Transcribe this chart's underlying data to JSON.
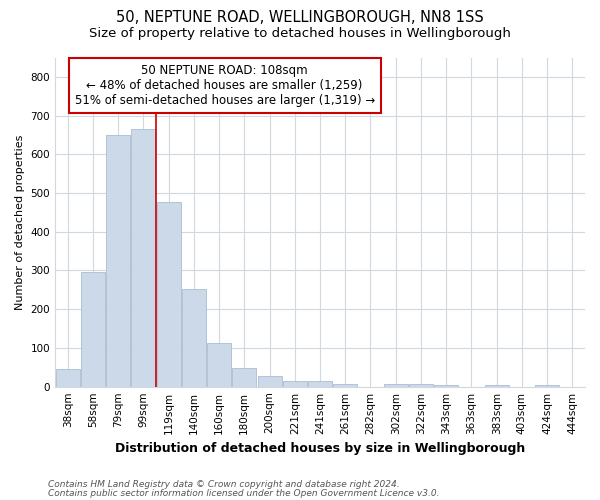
{
  "title1": "50, NEPTUNE ROAD, WELLINGBOROUGH, NN8 1SS",
  "title2": "Size of property relative to detached houses in Wellingborough",
  "xlabel": "Distribution of detached houses by size in Wellingborough",
  "ylabel": "Number of detached properties",
  "categories": [
    "38sqm",
    "58sqm",
    "79sqm",
    "99sqm",
    "119sqm",
    "140sqm",
    "160sqm",
    "180sqm",
    "200sqm",
    "221sqm",
    "241sqm",
    "261sqm",
    "282sqm",
    "302sqm",
    "322sqm",
    "343sqm",
    "363sqm",
    "383sqm",
    "403sqm",
    "424sqm",
    "444sqm"
  ],
  "values": [
    45,
    295,
    650,
    665,
    478,
    252,
    113,
    48,
    27,
    15,
    15,
    8,
    0,
    8,
    8,
    4,
    0,
    4,
    0,
    5,
    0
  ],
  "bar_color": "#ccd9e8",
  "bar_edge_color": "#aabdd4",
  "vline_color": "#cc0000",
  "annotation_text": "50 NEPTUNE ROAD: 108sqm\n← 48% of detached houses are smaller (1,259)\n51% of semi-detached houses are larger (1,319) →",
  "annotation_box_color": "white",
  "annotation_box_edge_color": "#cc0000",
  "ylim": [
    0,
    850
  ],
  "yticks": [
    0,
    100,
    200,
    300,
    400,
    500,
    600,
    700,
    800
  ],
  "footnote1": "Contains HM Land Registry data © Crown copyright and database right 2024.",
  "footnote2": "Contains public sector information licensed under the Open Government Licence v3.0.",
  "bg_color": "#ffffff",
  "plot_bg_color": "#ffffff",
  "grid_color": "#d0d8e0",
  "title1_fontsize": 10.5,
  "title2_fontsize": 9.5,
  "xlabel_fontsize": 9,
  "ylabel_fontsize": 8,
  "tick_fontsize": 7.5,
  "annotation_fontsize": 8.5,
  "footnote_fontsize": 6.5
}
